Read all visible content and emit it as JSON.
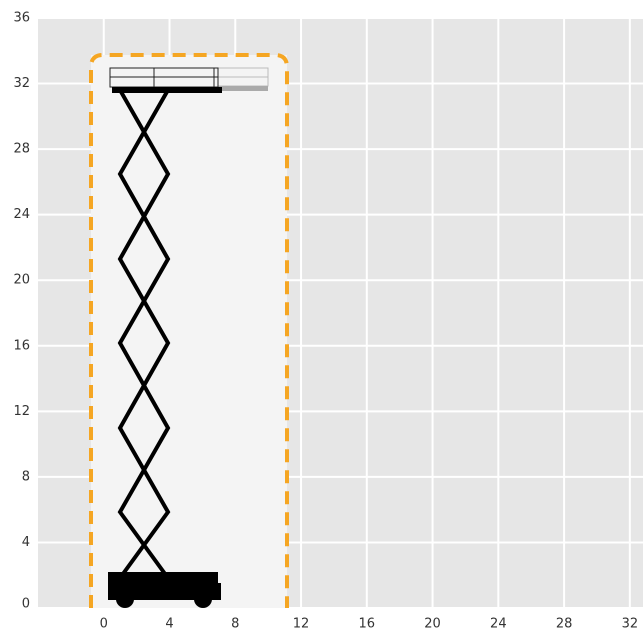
{
  "chart_data": {
    "type": "working-range",
    "xlim": [
      -4,
      32.8
    ],
    "ylim": [
      0,
      36
    ],
    "xticks": [
      0,
      4,
      8,
      12,
      16,
      20,
      24,
      28,
      32
    ],
    "yticks": [
      0,
      4,
      8,
      12,
      16,
      20,
      24,
      28,
      32,
      36
    ],
    "grid": true
  }
}
